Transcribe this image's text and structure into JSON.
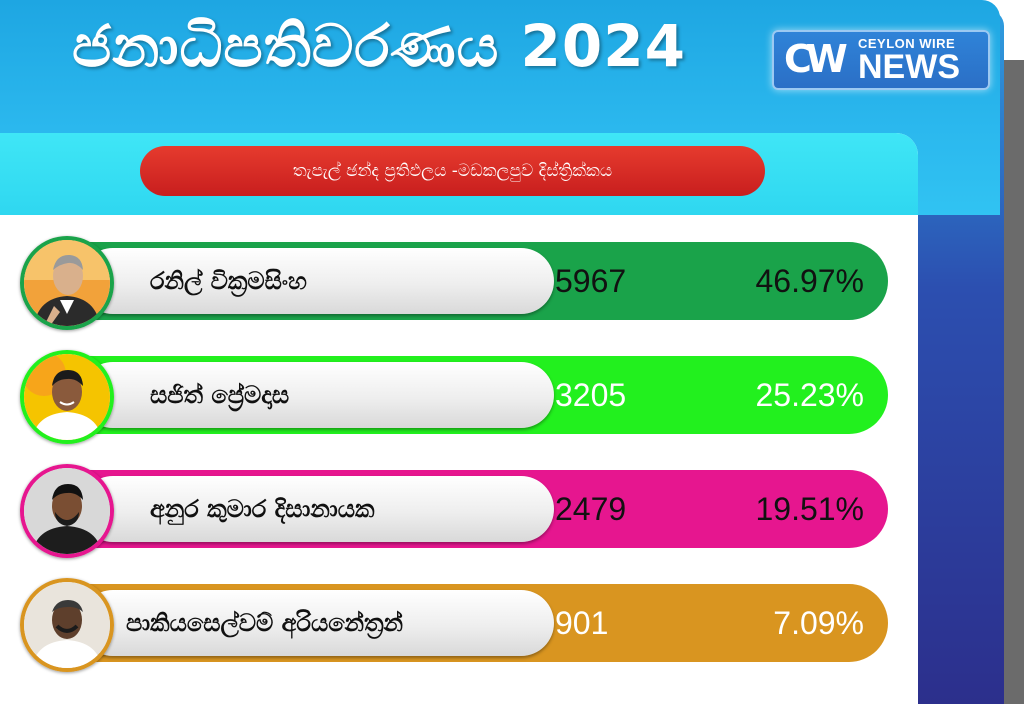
{
  "header": {
    "title": "ජනාධිපතිවරණය 2024",
    "logo": {
      "mark": "CW",
      "top_text": "CEYLON WIRE",
      "bottom_text": "NEWS"
    }
  },
  "subtitle": "තැපැල් ඡන්ද ප්‍රතිඵලය -මඩකලපුව  දිස්ත්‍රික්කය",
  "candidates": [
    {
      "name": "රනිල් වික්‍රමසිංහ",
      "votes": "5967",
      "percent": "46.97%",
      "color": "#1aa34a",
      "text_color": "#111111"
    },
    {
      "name": "සජිත් ප්‍රේමදාස",
      "votes": "3205",
      "percent": "25.23%",
      "color": "#22f01e",
      "text_color": "#ffffff"
    },
    {
      "name": "අනුර කුමාර දිසානායක",
      "votes": "2479",
      "percent": "19.51%",
      "color": "#e6168f",
      "text_color": "#111111"
    },
    {
      "name": "පාකියසෙල්වම් අරියනේත්‍රන්",
      "votes": "901",
      "percent": "7.09%",
      "color": "#d99520",
      "text_color": "#ffffff"
    }
  ]
}
